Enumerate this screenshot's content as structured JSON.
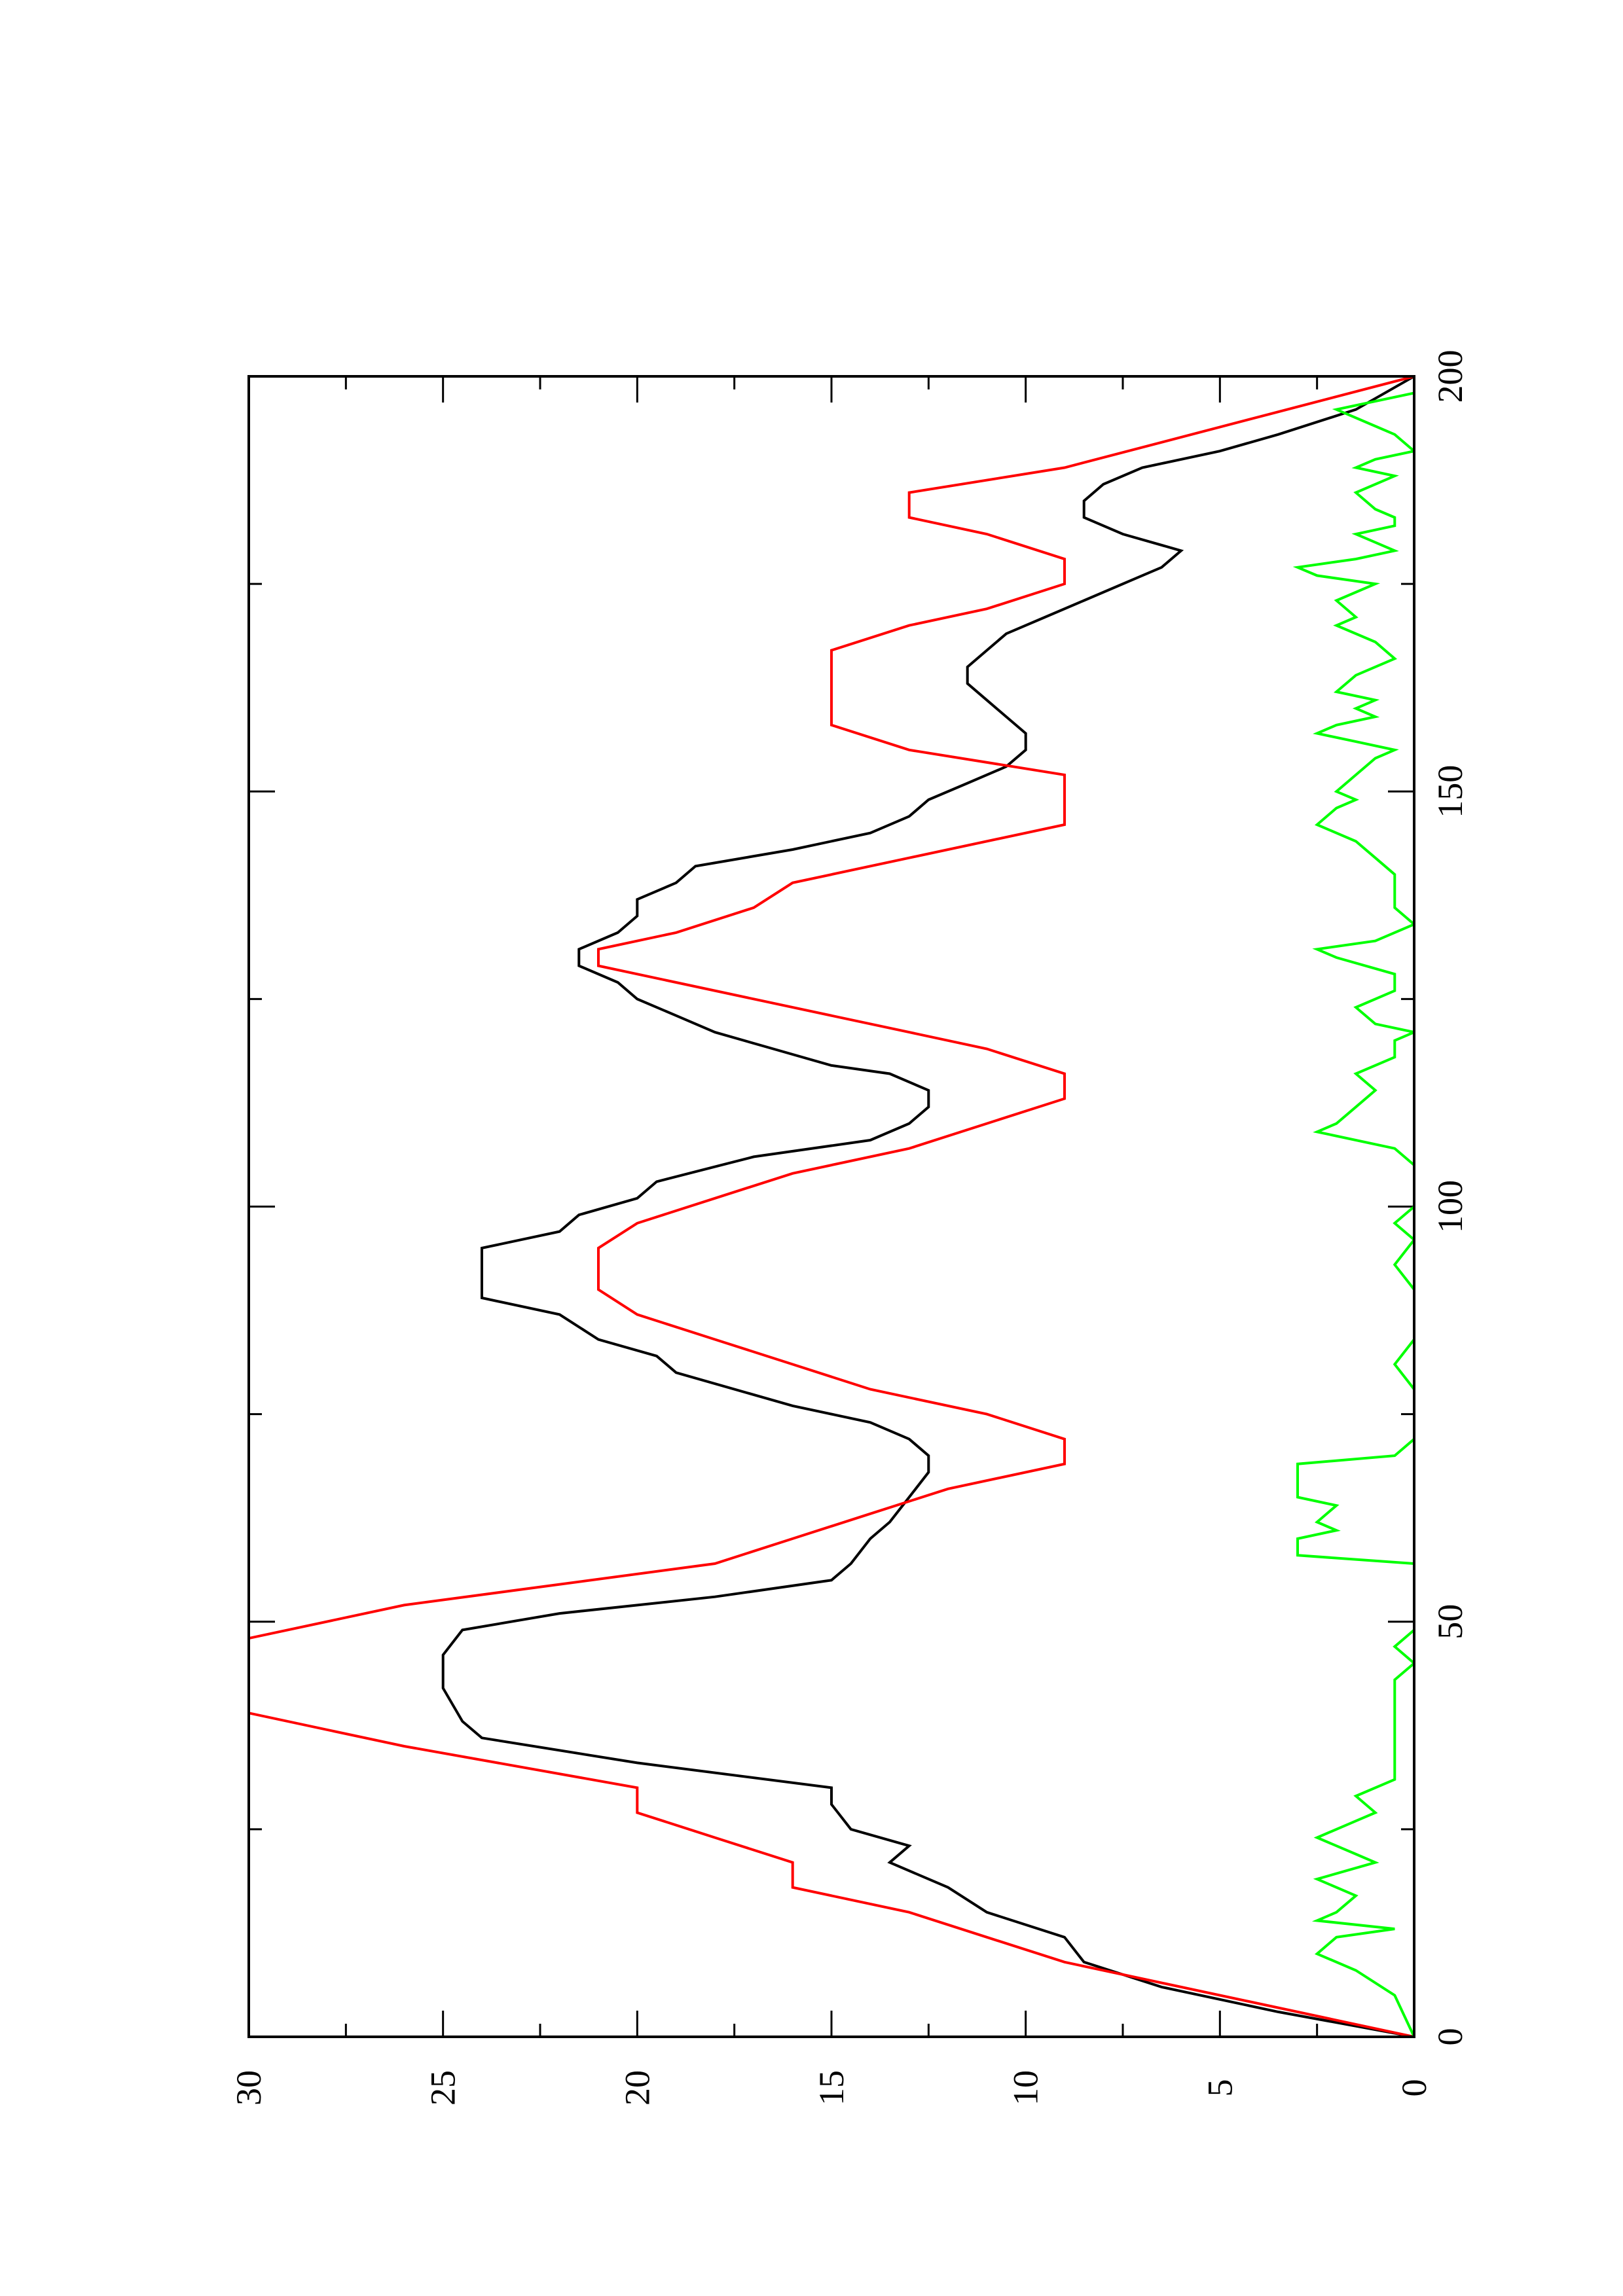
{
  "chart_data": {
    "type": "line",
    "orientation": "rotated 90 degrees counter-clockwise (page in portrait)",
    "title": "",
    "xlabel": "",
    "ylabel": "",
    "xlim": [
      0,
      200
    ],
    "ylim": [
      0,
      30
    ],
    "x_ticks": [
      0,
      50,
      100,
      150,
      200
    ],
    "y_ticks": [
      0,
      5,
      10,
      15,
      20,
      25,
      30
    ],
    "x_minor_step": 25,
    "y_minor_step": 2.5,
    "grid": false,
    "legend": "none",
    "series": [
      {
        "color": "#000000",
        "points": [
          [
            0,
            0
          ],
          [
            3,
            3.5
          ],
          [
            6,
            6.5
          ],
          [
            9,
            8.5
          ],
          [
            12,
            9
          ],
          [
            15,
            11
          ],
          [
            18,
            12
          ],
          [
            21,
            13.5
          ],
          [
            23,
            13
          ],
          [
            25,
            14.5
          ],
          [
            28,
            15
          ],
          [
            30,
            15
          ],
          [
            33,
            20
          ],
          [
            36,
            24
          ],
          [
            38,
            24.5
          ],
          [
            42,
            25
          ],
          [
            46,
            25
          ],
          [
            49,
            24.5
          ],
          [
            51,
            22
          ],
          [
            53,
            18
          ],
          [
            55,
            15
          ],
          [
            57,
            14.5
          ],
          [
            60,
            14
          ],
          [
            62,
            13.5
          ],
          [
            65,
            13
          ],
          [
            68,
            12.5
          ],
          [
            70,
            12.5
          ],
          [
            72,
            13
          ],
          [
            74,
            14
          ],
          [
            76,
            16
          ],
          [
            80,
            19
          ],
          [
            82,
            19.5
          ],
          [
            84,
            21
          ],
          [
            87,
            22
          ],
          [
            89,
            24
          ],
          [
            92,
            24
          ],
          [
            95,
            24
          ],
          [
            97,
            22
          ],
          [
            99,
            21.5
          ],
          [
            101,
            20
          ],
          [
            103,
            19.5
          ],
          [
            106,
            17
          ],
          [
            108,
            14
          ],
          [
            110,
            13
          ],
          [
            112,
            12.5
          ],
          [
            114,
            12.5
          ],
          [
            116,
            13.5
          ],
          [
            117,
            15
          ],
          [
            119,
            16.5
          ],
          [
            121,
            18
          ],
          [
            123,
            19
          ],
          [
            125,
            20
          ],
          [
            127,
            20.5
          ],
          [
            129,
            21.5
          ],
          [
            131,
            21.5
          ],
          [
            133,
            20.5
          ],
          [
            135,
            20
          ],
          [
            137,
            20
          ],
          [
            139,
            19
          ],
          [
            141,
            18.5
          ],
          [
            143,
            16
          ],
          [
            145,
            14
          ],
          [
            147,
            13
          ],
          [
            149,
            12.5
          ],
          [
            151,
            11.5
          ],
          [
            153,
            10.5
          ],
          [
            155,
            10
          ],
          [
            157,
            10
          ],
          [
            159,
            10.5
          ],
          [
            161,
            11
          ],
          [
            163,
            11.5
          ],
          [
            165,
            11.5
          ],
          [
            167,
            11
          ],
          [
            169,
            10.5
          ],
          [
            171,
            9.5
          ],
          [
            173,
            8.5
          ],
          [
            175,
            7.5
          ],
          [
            177,
            6.5
          ],
          [
            179,
            6
          ],
          [
            181,
            7.5
          ],
          [
            183,
            8.5
          ],
          [
            185,
            8.5
          ],
          [
            187,
            8
          ],
          [
            189,
            7
          ],
          [
            191,
            5
          ],
          [
            193,
            3.5
          ],
          [
            196,
            1.5
          ],
          [
            200,
            0
          ]
        ]
      },
      {
        "color": "#ff0000",
        "points": [
          [
            0,
            0
          ],
          [
            9,
            9
          ],
          [
            12,
            11
          ],
          [
            15,
            13
          ],
          [
            18,
            16
          ],
          [
            21,
            16
          ],
          [
            24,
            18
          ],
          [
            27,
            20
          ],
          [
            30,
            20
          ],
          [
            35,
            26
          ],
          [
            39,
            30
          ],
          [
            48,
            30
          ],
          [
            52,
            26
          ],
          [
            57,
            18
          ],
          [
            60,
            16
          ],
          [
            63,
            14
          ],
          [
            66,
            12
          ],
          [
            69,
            9
          ],
          [
            72,
            9
          ],
          [
            75,
            11
          ],
          [
            78,
            14
          ],
          [
            81,
            16
          ],
          [
            84,
            18
          ],
          [
            87,
            20
          ],
          [
            90,
            21
          ],
          [
            95,
            21
          ],
          [
            98,
            20
          ],
          [
            101,
            18
          ],
          [
            104,
            16
          ],
          [
            107,
            13
          ],
          [
            110,
            11
          ],
          [
            113,
            9
          ],
          [
            116,
            9
          ],
          [
            119,
            11
          ],
          [
            121,
            13
          ],
          [
            124,
            16
          ],
          [
            127,
            19
          ],
          [
            129,
            21
          ],
          [
            131,
            21
          ],
          [
            133,
            19
          ],
          [
            136,
            17
          ],
          [
            139,
            16
          ],
          [
            142,
            13
          ],
          [
            146,
            9
          ],
          [
            152,
            9
          ],
          [
            155,
            13
          ],
          [
            158,
            15
          ],
          [
            167,
            15
          ],
          [
            170,
            13
          ],
          [
            172,
            11
          ],
          [
            175,
            9
          ],
          [
            178,
            9
          ],
          [
            181,
            11
          ],
          [
            183,
            13
          ],
          [
            186,
            13
          ],
          [
            189,
            9
          ],
          [
            200,
            0
          ]
        ]
      },
      {
        "color": "#00ff00",
        "points": [
          [
            0,
            0
          ],
          [
            5,
            0.5
          ],
          [
            8,
            1.5
          ],
          [
            10,
            2.5
          ],
          [
            12,
            2
          ],
          [
            13,
            0.5
          ],
          [
            14,
            2.5
          ],
          [
            15,
            2
          ],
          [
            17,
            1.5
          ],
          [
            19,
            2.5
          ],
          [
            21,
            1
          ],
          [
            22,
            1.5
          ],
          [
            24,
            2.5
          ],
          [
            26,
            1.5
          ],
          [
            27,
            1
          ],
          [
            29,
            1.5
          ],
          [
            31,
            0.5
          ],
          [
            33,
            0.5
          ],
          [
            35,
            0.5
          ],
          [
            37,
            0.5
          ],
          [
            39,
            0.5
          ],
          [
            41,
            0.5
          ],
          [
            43,
            0.5
          ],
          [
            45,
            0
          ],
          [
            47,
            0.5
          ],
          [
            49,
            0
          ],
          [
            52,
            0
          ],
          [
            55,
            0
          ],
          [
            57,
            0
          ],
          [
            58,
            3
          ],
          [
            60,
            3
          ],
          [
            61,
            2
          ],
          [
            62,
            2.5
          ],
          [
            64,
            2
          ],
          [
            65,
            3
          ],
          [
            67,
            3
          ],
          [
            69,
            3
          ],
          [
            70,
            0.5
          ],
          [
            72,
            0
          ],
          [
            75,
            0
          ],
          [
            78,
            0
          ],
          [
            81,
            0.5
          ],
          [
            84,
            0
          ],
          [
            87,
            0
          ],
          [
            90,
            0
          ],
          [
            93,
            0.5
          ],
          [
            96,
            0
          ],
          [
            98,
            0.5
          ],
          [
            100,
            0
          ],
          [
            103,
            0
          ],
          [
            105,
            0
          ],
          [
            107,
            0.5
          ],
          [
            109,
            2.5
          ],
          [
            110,
            2
          ],
          [
            112,
            1.5
          ],
          [
            114,
            1
          ],
          [
            116,
            1.5
          ],
          [
            118,
            0.5
          ],
          [
            120,
            0.5
          ],
          [
            121,
            0
          ],
          [
            122,
            1
          ],
          [
            124,
            1.5
          ],
          [
            126,
            0.5
          ],
          [
            128,
            0.5
          ],
          [
            130,
            2
          ],
          [
            131,
            2.5
          ],
          [
            132,
            1
          ],
          [
            134,
            0
          ],
          [
            136,
            0.5
          ],
          [
            138,
            0.5
          ],
          [
            140,
            0.5
          ],
          [
            142,
            1
          ],
          [
            144,
            1.5
          ],
          [
            146,
            2.5
          ],
          [
            148,
            2
          ],
          [
            149,
            1.5
          ],
          [
            150,
            2
          ],
          [
            152,
            1.5
          ],
          [
            154,
            1
          ],
          [
            155,
            0.5
          ],
          [
            156,
            1.5
          ],
          [
            157,
            2.5
          ],
          [
            158,
            2
          ],
          [
            159,
            1
          ],
          [
            160,
            1.5
          ],
          [
            161,
            1
          ],
          [
            162,
            2
          ],
          [
            164,
            1.5
          ],
          [
            166,
            0.5
          ],
          [
            168,
            1
          ],
          [
            170,
            2
          ],
          [
            171,
            1.5
          ],
          [
            173,
            2
          ],
          [
            175,
            1
          ],
          [
            176,
            2.5
          ],
          [
            177,
            3
          ],
          [
            178,
            1.5
          ],
          [
            179,
            0.5
          ],
          [
            180,
            1
          ],
          [
            181,
            1.5
          ],
          [
            182,
            0.5
          ],
          [
            183,
            0.5
          ],
          [
            184,
            1
          ],
          [
            186,
            1.5
          ],
          [
            188,
            0.5
          ],
          [
            189,
            1.5
          ],
          [
            190,
            1
          ],
          [
            191,
            0
          ],
          [
            193,
            0.5
          ],
          [
            194,
            1
          ],
          [
            196,
            2
          ],
          [
            198,
            0
          ],
          [
            200,
            0
          ]
        ]
      }
    ]
  }
}
